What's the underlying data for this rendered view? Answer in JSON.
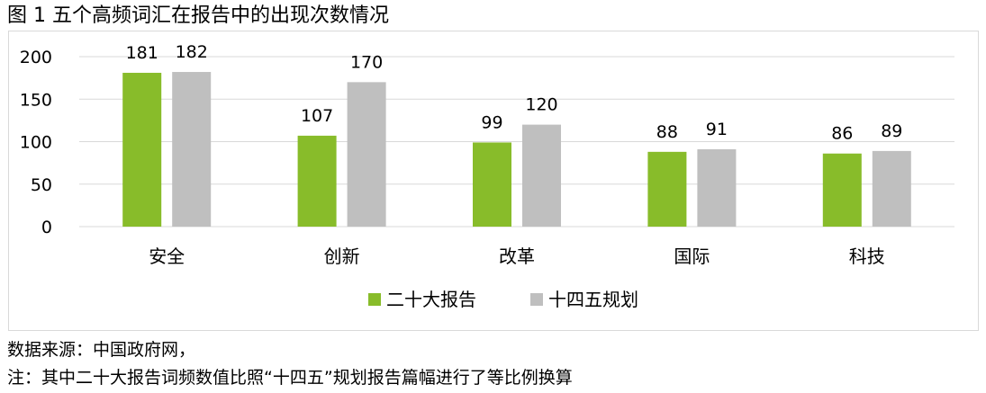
{
  "title": "图 1  五个高频词汇在报告中的出现次数情况",
  "source_note": "数据来源：中国政府网，",
  "footnote": "注：其中二十大报告词频数值比照“十四五”规划报告篇幅进行了等比例换算",
  "chart_data": {
    "type": "bar",
    "categories": [
      "安全",
      "创新",
      "改革",
      "国际",
      "科技"
    ],
    "series": [
      {
        "name": "二十大报告",
        "values": [
          181,
          107,
          99,
          88,
          86
        ],
        "color": "#88BC2A"
      },
      {
        "name": "十四五规划",
        "values": [
          182,
          170,
          120,
          91,
          89
        ],
        "color": "#BFBFBF"
      }
    ],
    "yticks": [
      "0",
      "50",
      "100",
      "150",
      "200"
    ],
    "ylim": [
      0,
      200
    ],
    "grid": true,
    "legend": "bottom"
  }
}
